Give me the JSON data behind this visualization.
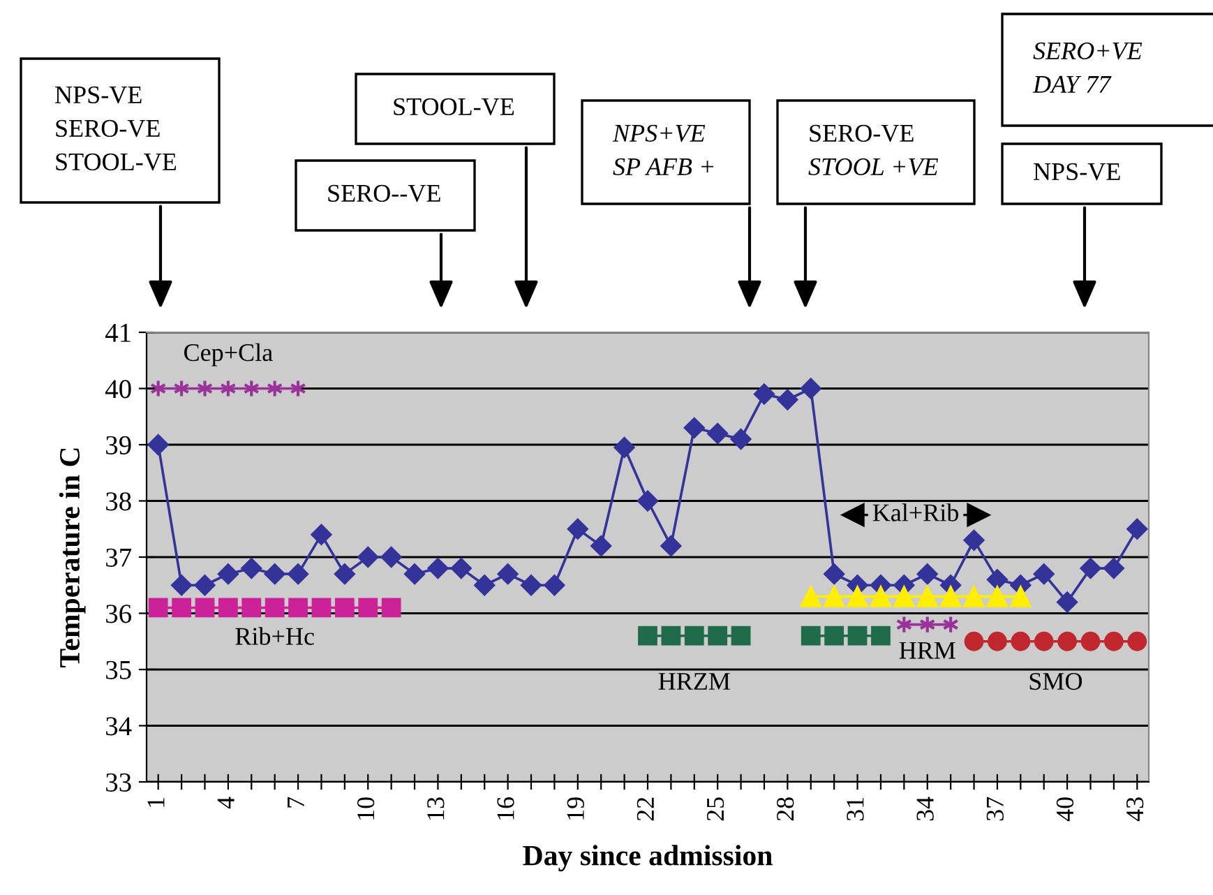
{
  "chart_data": {
    "type": "line",
    "xlabel": "Day since admission",
    "ylabel": "Temperature in C",
    "xlim": [
      0.5,
      43.5
    ],
    "xticks": [
      1,
      {
        "value": 2,
        "label": null
      },
      {
        "value": 3,
        "label": null
      },
      4,
      {
        "value": 5,
        "label": null
      },
      {
        "value": 6,
        "label": null
      },
      7,
      {
        "value": 8,
        "label": null
      },
      {
        "value": 9,
        "label": null
      },
      10,
      {
        "value": 11,
        "label": null
      },
      {
        "value": 12,
        "label": null
      },
      13,
      {
        "value": 14,
        "label": null
      },
      {
        "value": 15,
        "label": null
      },
      16,
      {
        "value": 17,
        "label": null
      },
      {
        "value": 18,
        "label": null
      },
      19,
      {
        "value": 20,
        "label": null
      },
      {
        "value": 21,
        "label": null
      },
      22,
      {
        "value": 23,
        "label": null
      },
      {
        "value": 24,
        "label": null
      },
      25,
      {
        "value": 26,
        "label": null
      },
      {
        "value": 27,
        "label": null
      },
      28,
      {
        "value": 29,
        "label": null
      },
      {
        "value": 30,
        "label": null
      },
      31,
      {
        "value": 32,
        "label": null
      },
      {
        "value": 33,
        "label": null
      },
      34,
      {
        "value": 35,
        "label": null
      },
      {
        "value": 36,
        "label": null
      },
      37,
      {
        "value": 38,
        "label": null
      },
      {
        "value": 39,
        "label": null
      },
      40,
      {
        "value": 41,
        "label": null
      },
      {
        "value": 42,
        "label": null
      },
      43
    ],
    "ylim": [
      33,
      41
    ],
    "yticks": [
      33,
      34,
      35,
      36,
      37,
      38,
      39,
      40,
      41
    ],
    "grid": "y",
    "legend": false,
    "line_style": "solid",
    "series": [
      {
        "color": "#333399",
        "marker": "diamond",
        "x": [
          1,
          2,
          3,
          4,
          5,
          6,
          7,
          8,
          9,
          10,
          11,
          12,
          13,
          14,
          15,
          16,
          17,
          18,
          19,
          20,
          21,
          22,
          23,
          24,
          25,
          26,
          27,
          28,
          29,
          30,
          31,
          32,
          33,
          34,
          35,
          36,
          37,
          38,
          39,
          40,
          41,
          42,
          43
        ],
        "values": [
          39,
          36.5,
          36.5,
          36.7,
          36.8,
          36.7,
          36.7,
          37.4,
          36.7,
          37,
          37,
          36.7,
          36.8,
          36.8,
          36.5,
          36.7,
          36.5,
          36.5,
          37.5,
          37.2,
          38.95,
          38,
          37.2,
          39.3,
          39.2,
          39.1,
          39.9,
          39.8,
          40,
          36.7,
          36.5,
          36.5,
          36.5,
          36.7,
          36.5,
          37.3,
          36.6,
          36.5,
          36.7,
          36.2,
          36.8,
          36.8,
          37.5
        ]
      },
      {
        "name": "Cep+Cla",
        "color": "#993399",
        "marker": "cross",
        "x": [
          1,
          2,
          3,
          4,
          5,
          6,
          7
        ],
        "values": [
          40,
          40,
          40,
          40,
          40,
          40,
          40
        ]
      },
      {
        "name": "Rib+Hc",
        "color": "#cc2299",
        "marker": "square",
        "x": [
          1,
          2,
          3,
          4,
          5,
          6,
          7,
          8,
          9,
          10,
          11
        ],
        "values": [
          36.1,
          36.1,
          36.1,
          36.1,
          36.1,
          36.1,
          36.1,
          36.1,
          36.1,
          36.1,
          36.1
        ]
      },
      {
        "name": "HRZM",
        "color": "#1f6b4a",
        "marker": "square",
        "x": [
          22,
          23,
          24,
          25,
          26,
          27,
          28,
          29,
          30,
          31,
          32
        ],
        "values": [
          35.6,
          35.6,
          35.6,
          35.6,
          35.6,
          null,
          null,
          35.6,
          35.6,
          35.6,
          35.6
        ]
      },
      {
        "name": "Kal+Rib",
        "color": "#ffee00",
        "marker": "triangle",
        "x": [
          29,
          30,
          31,
          32,
          33,
          34,
          35,
          36,
          37,
          38
        ],
        "values": [
          36.3,
          36.3,
          36.3,
          36.3,
          36.3,
          36.3,
          36.3,
          36.3,
          36.3,
          36.3
        ]
      },
      {
        "name": "HRM",
        "color": "#993399",
        "marker": "cross",
        "x": [
          33,
          34,
          35
        ],
        "values": [
          35.8,
          35.8,
          35.8
        ]
      },
      {
        "name": "SMO",
        "color": "#c0282d",
        "marker": "circle",
        "x": [
          36,
          37,
          38,
          39,
          40,
          41,
          42,
          43
        ],
        "values": [
          35.5,
          35.5,
          35.5,
          35.5,
          35.5,
          35.5,
          35.5,
          35.5
        ]
      }
    ],
    "annotations": [
      "NPS-VE\nSERO-VE\nSTOOL-VE",
      "SERO--VE",
      "STOOL-VE",
      "NPS+VE\nSP AFB +",
      "SERO-VE\nSTOOL +VE",
      "SERO+VE\nDAY 77",
      "NPS-VE"
    ]
  }
}
